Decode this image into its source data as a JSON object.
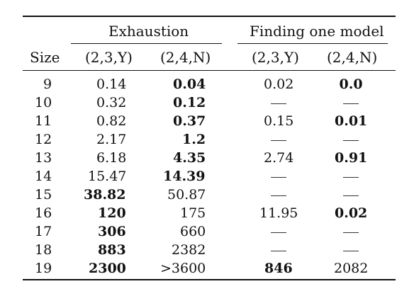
{
  "header": {
    "group_exhaustion": "Exhaustion",
    "group_finding": "Finding one model",
    "col_size": "Size",
    "col_ex_23y": "(2,3,Y)",
    "col_ex_24n": "(2,4,N)",
    "col_fi_23y": "(2,3,Y)",
    "col_fi_24n": "(2,4,N)"
  },
  "rows": [
    {
      "size": "9",
      "ex23": {
        "v": "0.14",
        "b": false
      },
      "ex24": {
        "v": "0.04",
        "b": true
      },
      "fi23": {
        "v": "0.02",
        "b": false
      },
      "fi24": {
        "v": "0.0",
        "b": true
      }
    },
    {
      "size": "10",
      "ex23": {
        "v": "0.32",
        "b": false
      },
      "ex24": {
        "v": "0.12",
        "b": true
      },
      "fi23": {
        "v": "—",
        "b": false
      },
      "fi24": {
        "v": "—",
        "b": false
      }
    },
    {
      "size": "11",
      "ex23": {
        "v": "0.82",
        "b": false
      },
      "ex24": {
        "v": "0.37",
        "b": true
      },
      "fi23": {
        "v": "0.15",
        "b": false
      },
      "fi24": {
        "v": "0.01",
        "b": true
      }
    },
    {
      "size": "12",
      "ex23": {
        "v": "2.17",
        "b": false
      },
      "ex24": {
        "v": "1.2",
        "b": true
      },
      "fi23": {
        "v": "—",
        "b": false
      },
      "fi24": {
        "v": "—",
        "b": false
      }
    },
    {
      "size": "13",
      "ex23": {
        "v": "6.18",
        "b": false
      },
      "ex24": {
        "v": "4.35",
        "b": true
      },
      "fi23": {
        "v": "2.74",
        "b": false
      },
      "fi24": {
        "v": "0.91",
        "b": true
      }
    },
    {
      "size": "14",
      "ex23": {
        "v": "15.47",
        "b": false
      },
      "ex24": {
        "v": "14.39",
        "b": true
      },
      "fi23": {
        "v": "—",
        "b": false
      },
      "fi24": {
        "v": "—",
        "b": false
      }
    },
    {
      "size": "15",
      "ex23": {
        "v": "38.82",
        "b": true
      },
      "ex24": {
        "v": "50.87",
        "b": false
      },
      "fi23": {
        "v": "—",
        "b": false
      },
      "fi24": {
        "v": "—",
        "b": false
      }
    },
    {
      "size": "16",
      "ex23": {
        "v": "120",
        "b": true
      },
      "ex24": {
        "v": "175",
        "b": false
      },
      "fi23": {
        "v": "11.95",
        "b": false
      },
      "fi24": {
        "v": "0.02",
        "b": true
      }
    },
    {
      "size": "17",
      "ex23": {
        "v": "306",
        "b": true
      },
      "ex24": {
        "v": "660",
        "b": false
      },
      "fi23": {
        "v": "—",
        "b": false
      },
      "fi24": {
        "v": "—",
        "b": false
      }
    },
    {
      "size": "18",
      "ex23": {
        "v": "883",
        "b": true
      },
      "ex24": {
        "v": "2382",
        "b": false
      },
      "fi23": {
        "v": "—",
        "b": false
      },
      "fi24": {
        "v": "—",
        "b": false
      }
    },
    {
      "size": "19",
      "ex23": {
        "v": "2300",
        "b": true
      },
      "ex24": {
        "v": ">3600",
        "b": false
      },
      "fi23": {
        "v": "846",
        "b": true
      },
      "fi24": {
        "v": "2082",
        "b": false
      }
    }
  ]
}
